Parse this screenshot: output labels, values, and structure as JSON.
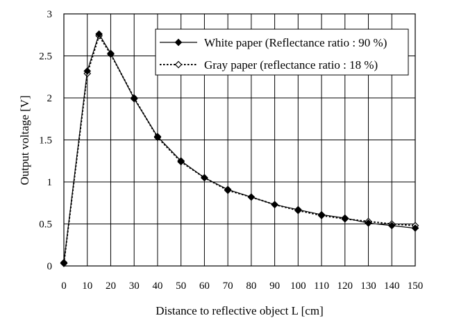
{
  "chart_data": {
    "type": "line",
    "title": "",
    "xlabel": "Distance to reflective object L [cm]",
    "ylabel": "Output voltage [V]",
    "xlim": [
      0,
      150
    ],
    "ylim": [
      0,
      3
    ],
    "x_ticks": [
      0,
      10,
      20,
      30,
      40,
      50,
      60,
      70,
      80,
      90,
      100,
      110,
      120,
      130,
      140,
      150
    ],
    "y_ticks": [
      "0",
      "0.5",
      "1",
      "1.5",
      "2",
      "2.5",
      "3"
    ],
    "x_gridlines": [
      0,
      10,
      20,
      30,
      40,
      50,
      60,
      70,
      80,
      90,
      100,
      110,
      120,
      130,
      140,
      150
    ],
    "y_gridlines": [
      0,
      0.5,
      1,
      1.5,
      2,
      2.5,
      3
    ],
    "grid": true,
    "legend_position": "top-right",
    "series": [
      {
        "name": "White paper (Reflectance ratio : 90 %)",
        "style": "solid",
        "marker": "filled-diamond",
        "color": "#000000",
        "x": [
          0,
          10,
          15,
          20,
          30,
          40,
          50,
          60,
          70,
          80,
          90,
          100,
          110,
          120,
          130,
          140,
          150
        ],
        "y": [
          0.04,
          2.32,
          2.76,
          2.53,
          1.99,
          1.54,
          1.25,
          1.05,
          0.91,
          0.82,
          0.73,
          0.67,
          0.61,
          0.57,
          0.51,
          0.48,
          0.45
        ]
      },
      {
        "name": "Gray paper (reflectance ratio : 18 %)",
        "style": "dotted",
        "marker": "open-diamond",
        "color": "#000000",
        "x": [
          0,
          10,
          15,
          20,
          30,
          40,
          50,
          60,
          70,
          80,
          90,
          100,
          110,
          120,
          130,
          140,
          150
        ],
        "y": [
          0.03,
          2.29,
          2.74,
          2.52,
          2.0,
          1.53,
          1.24,
          1.05,
          0.9,
          0.82,
          0.73,
          0.66,
          0.6,
          0.56,
          0.53,
          0.5,
          0.48
        ]
      }
    ]
  }
}
